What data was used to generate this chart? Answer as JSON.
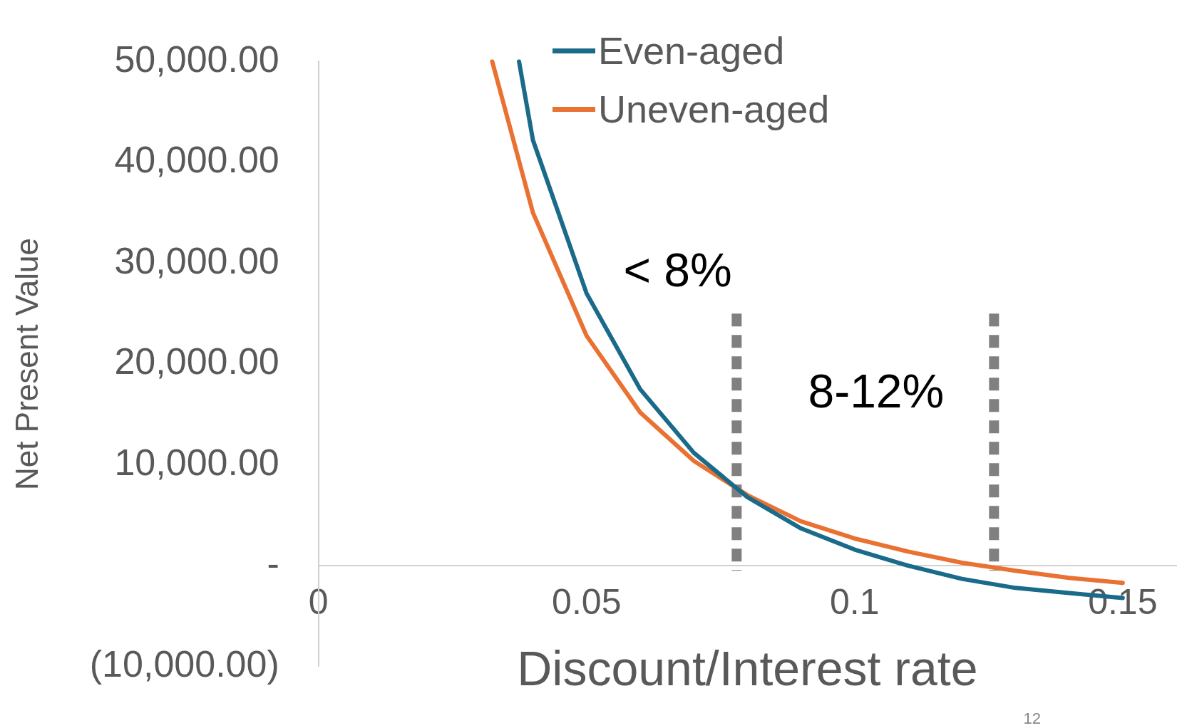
{
  "chart_data": {
    "type": "line",
    "xlabel": "Discount/Interest rate",
    "ylabel": "Net Present Value",
    "xlim": [
      0,
      0.16
    ],
    "xticks": [
      0,
      0.05,
      0.1,
      0.15
    ],
    "ylim": [
      -10000,
      50000
    ],
    "yticks": [
      {
        "value": 50000,
        "label": "50,000.00"
      },
      {
        "value": 40000,
        "label": "40,000.00"
      },
      {
        "value": 30000,
        "label": "30,000.00"
      },
      {
        "value": 20000,
        "label": "20,000.00"
      },
      {
        "value": 10000,
        "label": "10,000.00"
      },
      {
        "value": 0,
        "label": "-"
      },
      {
        "value": -10000,
        "label": "(10,000.00)"
      }
    ],
    "series": [
      {
        "name": "Even-aged",
        "color": "#1a6a8a",
        "x": [
          0.0374,
          0.04,
          0.05,
          0.06,
          0.07,
          0.08,
          0.09,
          0.1,
          0.11,
          0.12,
          0.13,
          0.14,
          0.15
        ],
        "values": [
          50000,
          42200,
          27000,
          17500,
          11200,
          6800,
          3700,
          1600,
          0,
          -1300,
          -2200,
          -2700,
          -3200
        ]
      },
      {
        "name": "Uneven-aged",
        "color": "#e97132",
        "x": [
          0.0324,
          0.04,
          0.05,
          0.06,
          0.07,
          0.08,
          0.09,
          0.1,
          0.11,
          0.12,
          0.13,
          0.14,
          0.15
        ],
        "values": [
          50000,
          35000,
          22800,
          15200,
          10400,
          7000,
          4400,
          2700,
          1400,
          300,
          -500,
          -1200,
          -1700
        ]
      }
    ],
    "ref_lines": [
      {
        "axis": "x",
        "value": 0.078,
        "color": "#808080",
        "line_style": "dashed"
      },
      {
        "axis": "x",
        "value": 0.126,
        "color": "#808080",
        "line_style": "dashed"
      }
    ],
    "annotations": [
      "< 8%",
      "8-12%",
      "12"
    ],
    "grid": false,
    "legend": "top",
    "line_style": "solid",
    "marker": "none"
  }
}
